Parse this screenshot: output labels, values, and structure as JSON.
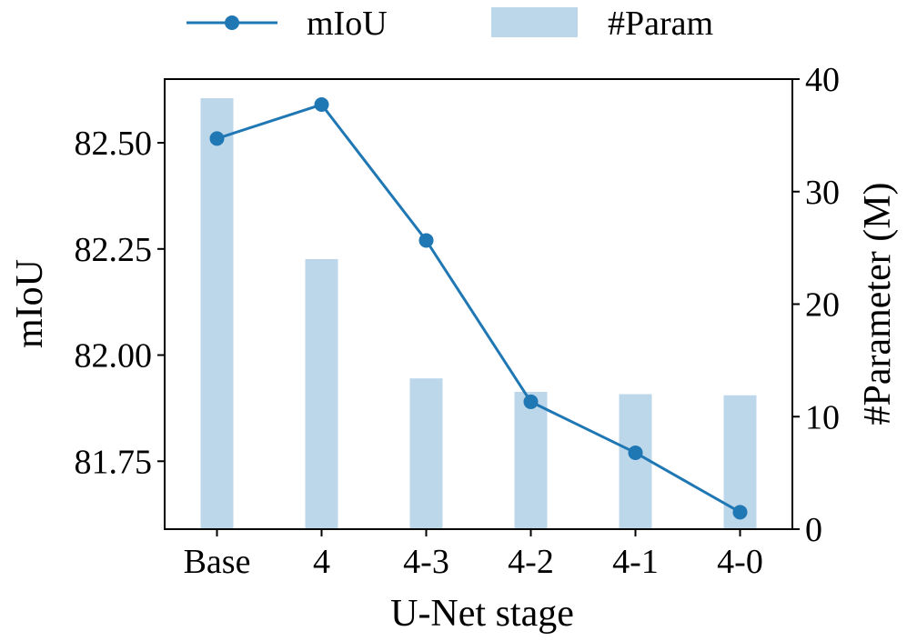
{
  "chart_data": {
    "type": "bar",
    "categories": [
      "Base",
      "4",
      "4-3",
      "4-2",
      "4-1",
      "4-0"
    ],
    "series": [
      {
        "name": "mIoU",
        "type": "line",
        "axis": "left",
        "values": [
          82.51,
          82.59,
          82.27,
          81.89,
          81.77,
          81.63
        ]
      },
      {
        "name": "#Param",
        "type": "bar",
        "axis": "right",
        "values": [
          38.3,
          24.0,
          13.4,
          12.2,
          12.0,
          11.9
        ]
      }
    ],
    "xlabel": "U-Net stage",
    "ylabel": "mIoU",
    "y2label": "#Parameter (M)",
    "ylim": [
      81.59,
      82.65
    ],
    "y2lim": [
      0,
      40
    ],
    "yticks": [
      "81.75",
      "82.00",
      "82.25",
      "82.50"
    ],
    "y2ticks": [
      "0",
      "10",
      "20",
      "30",
      "40"
    ],
    "legend_position": "top",
    "grid": false,
    "colors": {
      "line": "#1f77b4",
      "bar": "#bcd6ea"
    }
  }
}
